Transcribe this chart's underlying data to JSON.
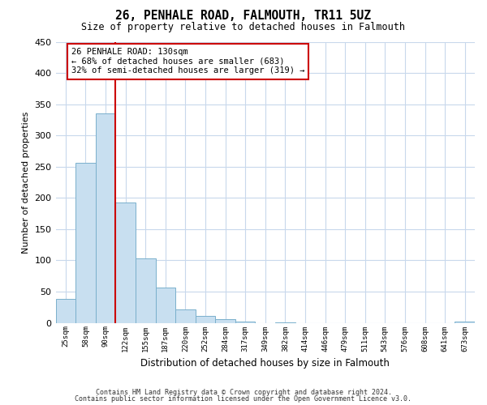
{
  "title": "26, PENHALE ROAD, FALMOUTH, TR11 5UZ",
  "subtitle": "Size of property relative to detached houses in Falmouth",
  "xlabel": "Distribution of detached houses by size in Falmouth",
  "ylabel": "Number of detached properties",
  "bar_labels": [
    "25sqm",
    "58sqm",
    "90sqm",
    "122sqm",
    "155sqm",
    "187sqm",
    "220sqm",
    "252sqm",
    "284sqm",
    "317sqm",
    "349sqm",
    "382sqm",
    "414sqm",
    "446sqm",
    "479sqm",
    "511sqm",
    "543sqm",
    "576sqm",
    "608sqm",
    "641sqm",
    "673sqm"
  ],
  "bar_heights": [
    38,
    256,
    335,
    193,
    103,
    56,
    21,
    11,
    6,
    2,
    0,
    1,
    0,
    0,
    0,
    0,
    0,
    0,
    0,
    0,
    2
  ],
  "bar_color": "#c8dff0",
  "bar_edge_color": "#7ab0cc",
  "vline_index": 3,
  "vline_color": "#cc0000",
  "annotation_line1": "26 PENHALE ROAD: 130sqm",
  "annotation_line2": "← 68% of detached houses are smaller (683)",
  "annotation_line3": "32% of semi-detached houses are larger (319) →",
  "annotation_box_color": "#ffffff",
  "annotation_box_edge": "#cc0000",
  "ylim": [
    0,
    450
  ],
  "yticks": [
    0,
    50,
    100,
    150,
    200,
    250,
    300,
    350,
    400,
    450
  ],
  "footer1": "Contains HM Land Registry data © Crown copyright and database right 2024.",
  "footer2": "Contains public sector information licensed under the Open Government Licence v3.0.",
  "bg_color": "#ffffff",
  "grid_color": "#c8d8ec"
}
